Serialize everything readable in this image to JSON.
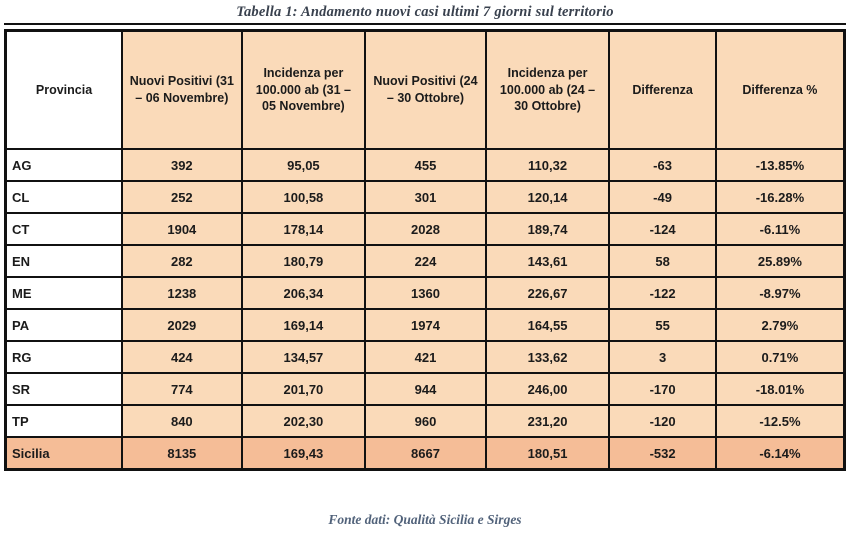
{
  "title": "Tabella 1: Andamento nuovi casi ultimi 7 giorni sul territorio",
  "footer": "Fonte dati: Qualità Sicilia e Sirges",
  "colors": {
    "cell_bg": "#fadab9",
    "total_bg": "#f5bd97",
    "border": "#111111",
    "title_color": "#39414e",
    "footer_color": "#51627a"
  },
  "chart_data": {
    "type": "table",
    "title": "Tabella 1: Andamento nuovi casi ultimi 7 giorni sul territorio",
    "columns": [
      "Provincia",
      "Nuovi Positivi (31 – 06 Novembre)",
      "Incidenza per 100.000 ab (31 – 05 Novembre)",
      "Nuovi Positivi (24 – 30 Ottobre)",
      "Incidenza per 100.000 ab (24 – 30 Ottobre)",
      "Differenza",
      "Differenza %"
    ],
    "rows": [
      [
        "AG",
        "392",
        "95,05",
        "455",
        "110,32",
        "-63",
        "-13.85%"
      ],
      [
        "CL",
        "252",
        "100,58",
        "301",
        "120,14",
        "-49",
        "-16.28%"
      ],
      [
        "CT",
        "1904",
        "178,14",
        "2028",
        "189,74",
        "-124",
        "-6.11%"
      ],
      [
        "EN",
        "282",
        "180,79",
        "224",
        "143,61",
        "58",
        "25.89%"
      ],
      [
        "ME",
        "1238",
        "206,34",
        "1360",
        "226,67",
        "-122",
        "-8.97%"
      ],
      [
        "PA",
        "2029",
        "169,14",
        "1974",
        "164,55",
        "55",
        "2.79%"
      ],
      [
        "RG",
        "424",
        "134,57",
        "421",
        "133,62",
        "3",
        "0.71%"
      ],
      [
        "SR",
        "774",
        "201,70",
        "944",
        "246,00",
        "-170",
        "-18.01%"
      ],
      [
        "TP",
        "840",
        "202,30",
        "960",
        "231,20",
        "-120",
        "-12.5%"
      ]
    ],
    "total_row": [
      "Sicilia",
      "8135",
      "169,43",
      "8667",
      "180,51",
      "-532",
      "-6.14%"
    ]
  }
}
